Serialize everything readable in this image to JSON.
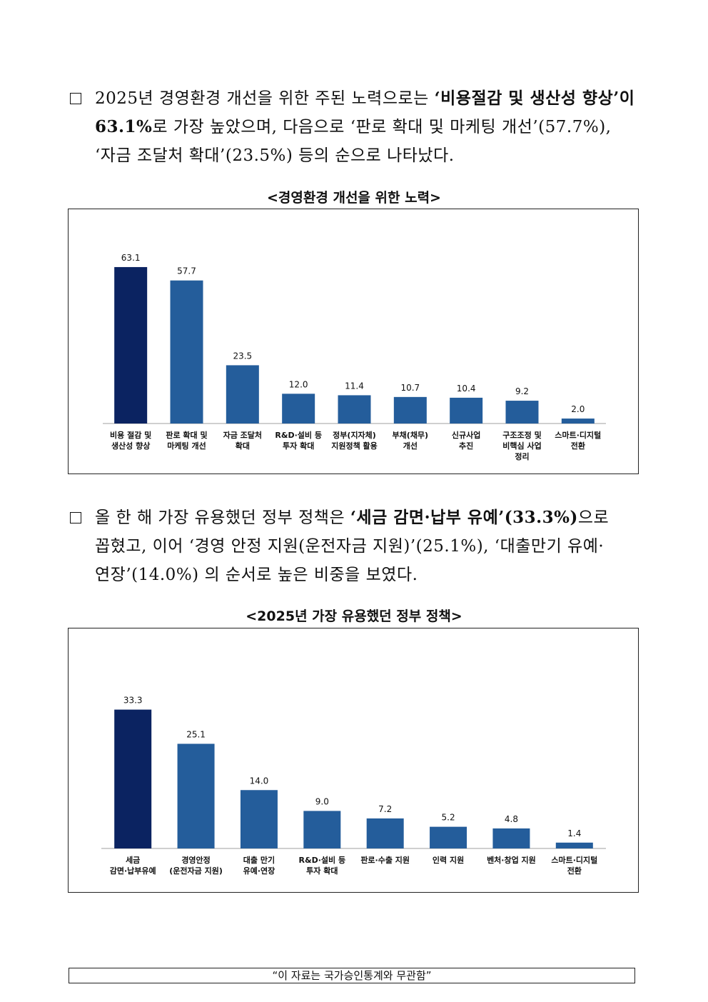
{
  "section1": {
    "line1_normal": "2025년 경영환경 개선을 위한 주된 노력으로는 ",
    "line1_bold": "‘비용절감 및 생산성 향상’이",
    "line2_bold": "63.1%",
    "line2_normal": "로 가장 높았으며, 다음으로 ‘판로 확대 및 마케팅 개선’(57.7%),",
    "line3": "‘자금 조달처 확대’(23.5%) 등의 순으로 나타났다.",
    "caption": "<경영환경 개선을 위한 노력>"
  },
  "section2": {
    "line1_normal": "올 한 해 가장 유용했던 정부 정책은 ",
    "line1_bold": "‘세금 감면·납부 유예’(33.3%)",
    "line1_tail": "으로",
    "line2": "꼽혔고, 이어 ‘경영 안정 지원(운전자금 지원)’(25.1%), ‘대출만기 유예·",
    "line3": "연장’(14.0%) 의 순서로 높은 비중을 보였다.",
    "caption": "<2025년 가장 유용했던 정부 정책>"
  },
  "footer": "“이 자료는 국가승인통계와 무관함”",
  "colors": {
    "highlight": "#0b2361",
    "bar": "#245d9b",
    "axis": "#bfbfbf"
  },
  "chart_data": [
    {
      "type": "bar",
      "title": "<경영환경 개선을 위한 노력>",
      "categories": [
        [
          "비용 절감 및",
          "생산성 향상"
        ],
        [
          "판로 확대 및",
          "마케팅 개선"
        ],
        [
          "자금 조달처",
          "확대"
        ],
        [
          "R&D·설비 등",
          "투자 확대"
        ],
        [
          "정부(지자체)",
          "지원정책 활용"
        ],
        [
          "부채(채무)",
          "개선"
        ],
        [
          "신규사업",
          "추진"
        ],
        [
          "구조조정 및",
          "비핵심 사업",
          "정리"
        ],
        [
          "스마트·디지털",
          "전환"
        ]
      ],
      "values": [
        63.1,
        57.7,
        23.5,
        12.0,
        11.4,
        10.7,
        10.4,
        9.2,
        2.0
      ],
      "labels": [
        "63.1",
        "57.7",
        "23.5",
        "12.0",
        "11.4",
        "10.7",
        "10.4",
        "9.2",
        "2.0"
      ],
      "ylim": [
        0,
        70
      ],
      "grid": false
    },
    {
      "type": "bar",
      "title": "<2025년 가장 유용했던 정부 정책>",
      "categories": [
        [
          "세금",
          "감면·납부유예"
        ],
        [
          "경영안정",
          "(운전자금 지원)"
        ],
        [
          "대출 만기",
          "유예·연장"
        ],
        [
          "R&D·설비 등",
          "투자 확대"
        ],
        [
          "판로·수출 지원"
        ],
        [
          "인력 지원"
        ],
        [
          "벤처·창업 지원"
        ],
        [
          "스마트·디지털",
          "전환"
        ]
      ],
      "values": [
        33.3,
        25.1,
        14.0,
        9.0,
        7.2,
        5.2,
        4.8,
        1.4
      ],
      "labels": [
        "33.3",
        "25.1",
        "14.0",
        "9.0",
        "7.2",
        "5.2",
        "4.8",
        "1.4"
      ],
      "ylim": [
        0,
        37
      ],
      "grid": false
    }
  ]
}
